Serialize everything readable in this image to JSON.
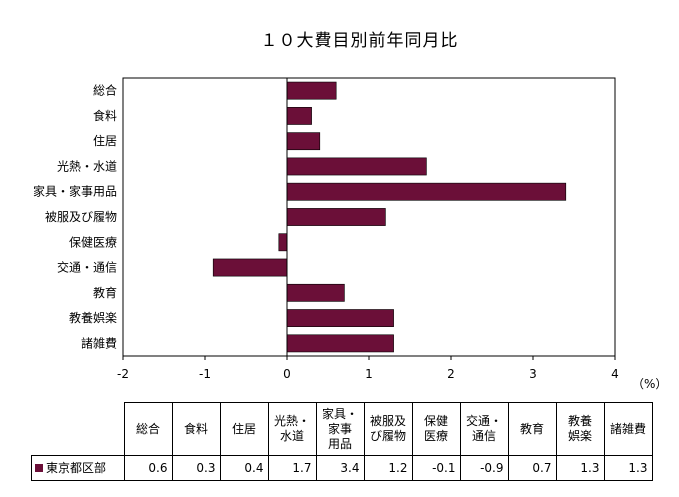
{
  "chart_data": {
    "type": "bar",
    "orientation": "horizontal",
    "title": "１０大費目別前年同月比",
    "unit": "（%）",
    "categories": [
      "総合",
      "食料",
      "住居",
      "光熱・水道",
      "家具・家事用品",
      "被服及び履物",
      "保健医療",
      "交通・通信",
      "教育",
      "教養娯楽",
      "諸雑費"
    ],
    "series": [
      {
        "name": "東京都区部",
        "color": "#6b0f38",
        "values": [
          0.6,
          0.3,
          0.4,
          1.7,
          3.4,
          1.2,
          -0.1,
          -0.9,
          0.7,
          1.3,
          1.3
        ]
      }
    ],
    "xlim": [
      -2,
      4
    ],
    "xticks": [
      "-2",
      "-1",
      "0",
      "1",
      "2",
      "3",
      "4"
    ],
    "grid": false,
    "table_headers": [
      "総合",
      "食料",
      "住居",
      "光熱・\n水道",
      "家具・\n家事\n用品",
      "被服及\nび履物",
      "保健\n医療",
      "交通・\n通信",
      "教育",
      "教養\n娯楽",
      "諸雑費"
    ],
    "table_values": [
      "0.6",
      "0.3",
      "0.4",
      "1.7",
      "3.4",
      "1.2",
      "-0.1",
      "-0.9",
      "0.7",
      "1.3",
      "1.3"
    ]
  }
}
